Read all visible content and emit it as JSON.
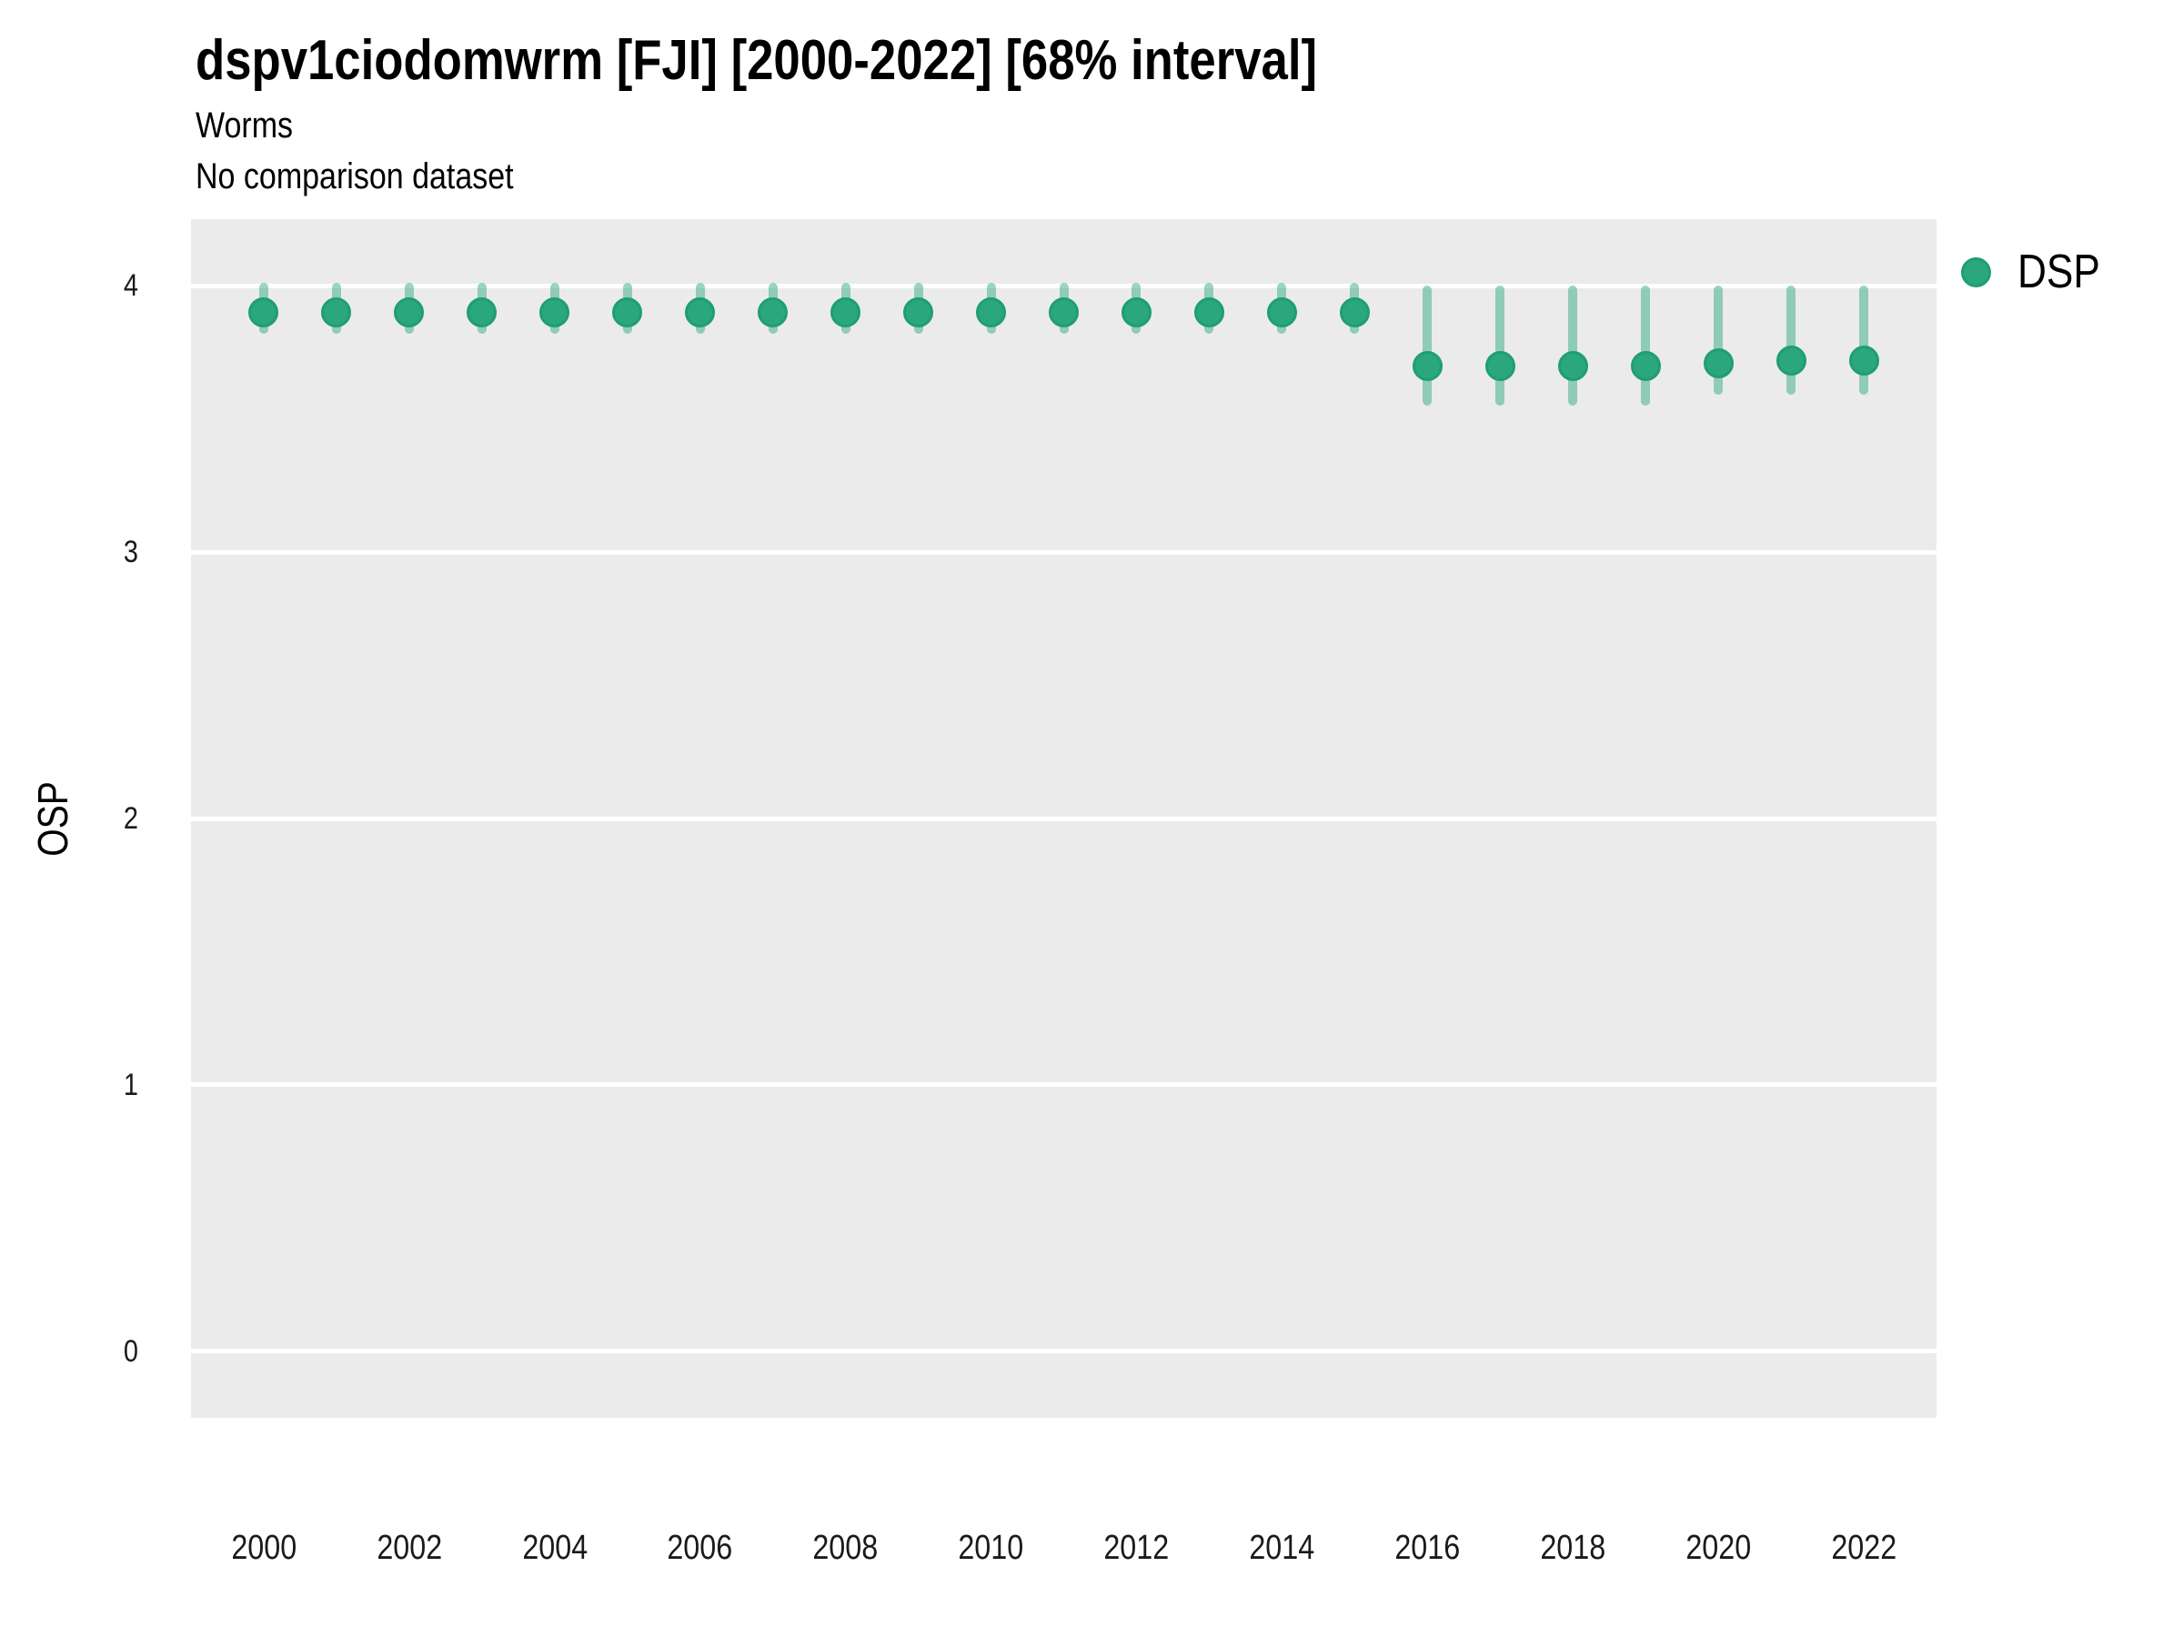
{
  "header": {
    "title": "dspv1ciodomwrm [FJI] [2000-2022] [68% interval]",
    "subtitle": "Worms",
    "comparison_note": "No comparison dataset"
  },
  "legend": {
    "position": "right-top",
    "items": [
      {
        "label": "DSP",
        "swatch": "circle",
        "color": "#2aa77d"
      }
    ]
  },
  "colors": {
    "marker_fill": "#2aa77d",
    "marker_ring": "#1f9e72",
    "error_bar": "rgba(42,167,125,0.48)",
    "panel_background": "#ebebeb",
    "gridline": "#ffffff",
    "text": "#000000"
  },
  "chart_data": {
    "type": "scatter",
    "title": "dspv1ciodomwrm [FJI] [2000-2022] [68% interval]",
    "subtitle": "Worms",
    "annotation": "No comparison dataset",
    "xlabel": "",
    "ylabel": "OSP",
    "interval_label": "68% interval",
    "xlim": [
      1999,
      2023
    ],
    "ylim": [
      -0.25,
      4.25
    ],
    "x_ticks": [
      2000,
      2002,
      2004,
      2006,
      2008,
      2010,
      2012,
      2014,
      2016,
      2018,
      2020,
      2022
    ],
    "y_ticks": [
      0,
      1,
      2,
      3,
      4
    ],
    "grid": "horizontal major gridlines, white on gray panel",
    "legend_position": "right-top",
    "series": [
      {
        "name": "DSP",
        "points": [
          {
            "x": 2000,
            "y": 3.9,
            "lo": 3.82,
            "hi": 4.01
          },
          {
            "x": 2001,
            "y": 3.9,
            "lo": 3.82,
            "hi": 4.01
          },
          {
            "x": 2002,
            "y": 3.9,
            "lo": 3.82,
            "hi": 4.01
          },
          {
            "x": 2003,
            "y": 3.9,
            "lo": 3.82,
            "hi": 4.01
          },
          {
            "x": 2004,
            "y": 3.9,
            "lo": 3.82,
            "hi": 4.01
          },
          {
            "x": 2005,
            "y": 3.9,
            "lo": 3.82,
            "hi": 4.01
          },
          {
            "x": 2006,
            "y": 3.9,
            "lo": 3.82,
            "hi": 4.01
          },
          {
            "x": 2007,
            "y": 3.9,
            "lo": 3.82,
            "hi": 4.01
          },
          {
            "x": 2008,
            "y": 3.9,
            "lo": 3.82,
            "hi": 4.01
          },
          {
            "x": 2009,
            "y": 3.9,
            "lo": 3.82,
            "hi": 4.01
          },
          {
            "x": 2010,
            "y": 3.9,
            "lo": 3.82,
            "hi": 4.01
          },
          {
            "x": 2011,
            "y": 3.9,
            "lo": 3.82,
            "hi": 4.01
          },
          {
            "x": 2012,
            "y": 3.9,
            "lo": 3.82,
            "hi": 4.01
          },
          {
            "x": 2013,
            "y": 3.9,
            "lo": 3.82,
            "hi": 4.01
          },
          {
            "x": 2014,
            "y": 3.9,
            "lo": 3.82,
            "hi": 4.01
          },
          {
            "x": 2015,
            "y": 3.9,
            "lo": 3.82,
            "hi": 4.01
          },
          {
            "x": 2016,
            "y": 3.7,
            "lo": 3.55,
            "hi": 4.0
          },
          {
            "x": 2017,
            "y": 3.7,
            "lo": 3.55,
            "hi": 4.0
          },
          {
            "x": 2018,
            "y": 3.7,
            "lo": 3.55,
            "hi": 4.0
          },
          {
            "x": 2019,
            "y": 3.7,
            "lo": 3.55,
            "hi": 4.0
          },
          {
            "x": 2020,
            "y": 3.71,
            "lo": 3.59,
            "hi": 4.0
          },
          {
            "x": 2021,
            "y": 3.72,
            "lo": 3.59,
            "hi": 4.0
          },
          {
            "x": 2022,
            "y": 3.72,
            "lo": 3.59,
            "hi": 4.0
          }
        ]
      }
    ]
  }
}
